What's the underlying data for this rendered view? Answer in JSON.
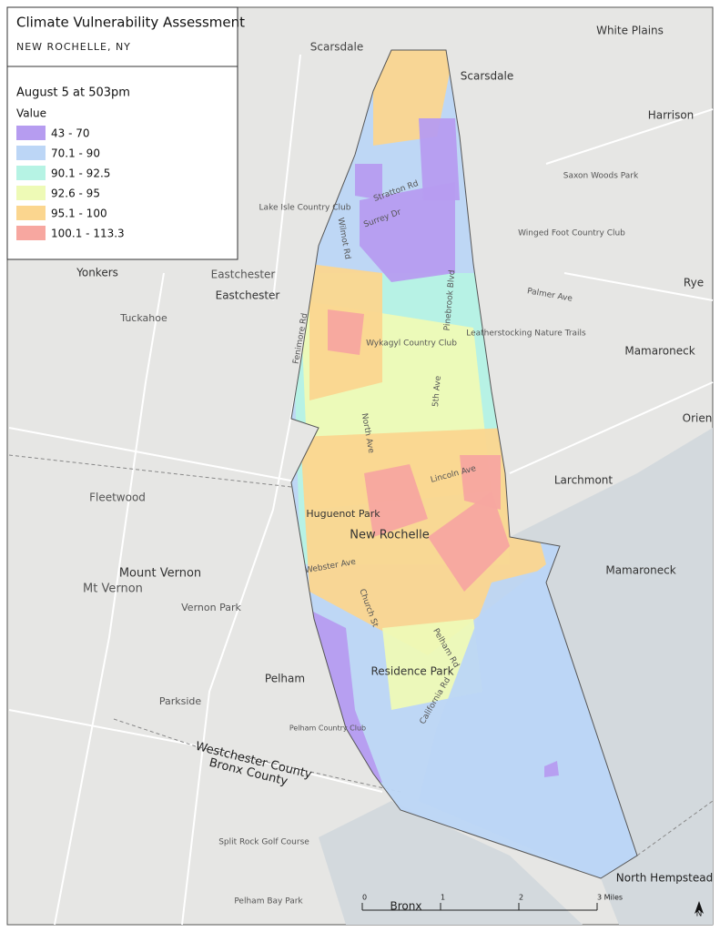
{
  "legend": {
    "title": "Climate Vulnerability Assessment",
    "subtitle": "NEW ROCHELLE, NY",
    "time": "August 5 at 503pm",
    "field": "Value",
    "classes": [
      {
        "label": "43 - 70",
        "color": "#b69cf0"
      },
      {
        "label": "70.1 - 90",
        "color": "#bcd6f6"
      },
      {
        "label": "90.1 - 92.5",
        "color": "#b6f3e4"
      },
      {
        "label": "92.6 - 95",
        "color": "#eefab6"
      },
      {
        "label": "95.1 - 100",
        "color": "#fbd68f"
      },
      {
        "label": "100.1 - 113.3",
        "color": "#f7a7a0"
      }
    ]
  },
  "places": [
    "Scarsdale",
    "Scarsdale",
    "White Plains",
    "Harrison",
    "Rye",
    "Mamaroneck",
    "Mamaroneck",
    "Larchmont",
    "Orien",
    "Yonkers",
    "Eastchester",
    "Eastchester",
    "Tuckahoe",
    "Fleetwood",
    "Mount Vernon",
    "Mt Vernon",
    "Vernon Park",
    "Pelham",
    "Parkside",
    "Huguenot Park",
    "New Rochelle",
    "Residence Park",
    "Wykagyl Country Club",
    "Lake Isle Country Club",
    "Winged Foot Country Club",
    "Saxon Woods Park",
    "Leatherstocking Nature Trails",
    "Pelham Country Club",
    "Split Rock Golf Course",
    "Pelham Bay Park",
    "North Hempstead",
    "Stratton Rd",
    "Surrey Dr",
    "Wilmot Rd",
    "North Ave",
    "Pinebrook Blvd",
    "5th Ave",
    "Lincoln Ave",
    "Webster Ave",
    "Church St",
    "Pelham Rd",
    "California Rd",
    "Fenimore Rd",
    "Palmer Ave"
  ],
  "county_line": [
    "Westchester County",
    "Bronx County"
  ],
  "scale_bar": {
    "ticks": [
      0,
      1,
      2,
      {
        "value": 3,
        "label": "3 Miles"
      }
    ],
    "label": "Bronx"
  },
  "north": "N"
}
